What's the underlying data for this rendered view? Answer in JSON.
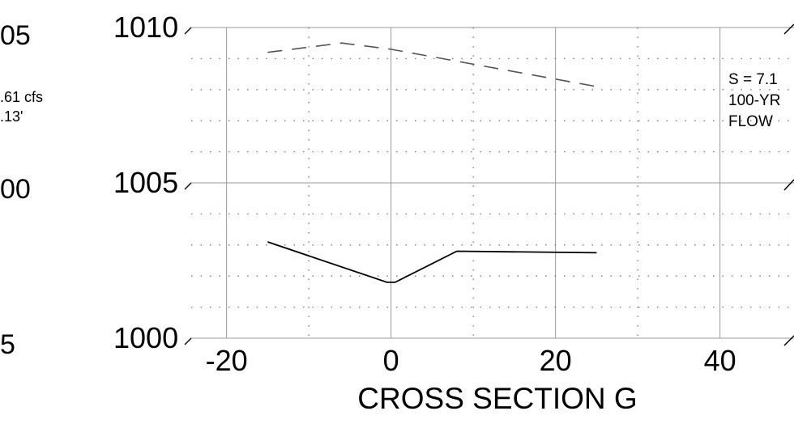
{
  "left_fragment": {
    "y_labels": [
      "05",
      "00",
      "5"
    ],
    "annotation": ".61 cfs",
    "annotation2": ".13'"
  },
  "right_fragment": {
    "lines": [
      "S = 7.1",
      "100-YR",
      "FLOW"
    ]
  },
  "chart_data": {
    "type": "line",
    "title": "CROSS SECTION G",
    "xlabel": "CROSS SECTION G",
    "ylabel": "",
    "xlim": [
      -24.3,
      49
    ],
    "ylim": [
      1000,
      1010
    ],
    "x_ticks": [
      -20,
      0,
      20,
      40
    ],
    "x_tick_labels": [
      "-20",
      "0",
      "20",
      "40"
    ],
    "y_ticks": [
      1000,
      1005,
      1010
    ],
    "y_tick_labels": [
      "1000",
      "1005",
      "1010"
    ],
    "grid": true,
    "series": [
      {
        "style": "dashed",
        "color": "#555555",
        "points": [
          [
            -15,
            1009.2
          ],
          [
            -6,
            1009.5
          ],
          [
            0,
            1009.3
          ],
          [
            25,
            1008.1
          ]
        ]
      },
      {
        "style": "solid",
        "color": "#000000",
        "points": [
          [
            -15,
            1003.1
          ],
          [
            -0.5,
            1001.8
          ],
          [
            0.5,
            1001.8
          ],
          [
            8,
            1002.8
          ],
          [
            25,
            1002.75
          ]
        ]
      }
    ]
  }
}
